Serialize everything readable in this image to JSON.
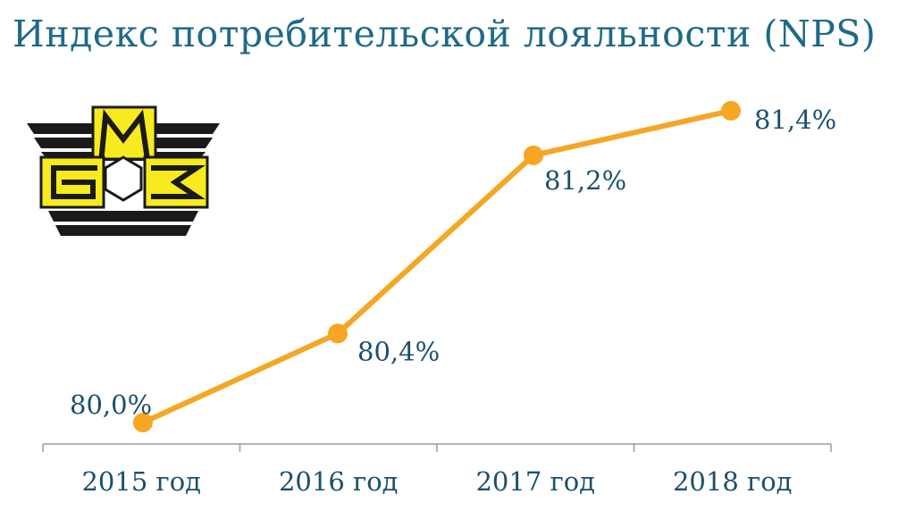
{
  "title": "Индекс потребительской лояльности (NPS)",
  "logo": {
    "name": "БМЗ",
    "letters": [
      "Б",
      "М",
      "З"
    ]
  },
  "colors": {
    "title": "#1e6a87",
    "label": "#1a4f6e",
    "line": "#f5a623",
    "axis": "#9a9a9a",
    "logo_yellow": "#f7ea1e",
    "logo_black": "#1a1a1a"
  },
  "chart_data": {
    "type": "line",
    "title": "Индекс потребительской лояльности (NPS)",
    "categories": [
      "2015 год",
      "2016 год",
      "2017 год",
      "2018 год"
    ],
    "series": [
      {
        "values": [
          80.0,
          80.4,
          81.2,
          81.4
        ],
        "labels": [
          "80,0%",
          "80,4%",
          "81,2%",
          "81,4%"
        ]
      }
    ],
    "xlabel": "",
    "ylabel": "",
    "ylim": [
      80.0,
      81.4
    ],
    "y_axis_visible": false,
    "grid": false,
    "legend": "none"
  }
}
